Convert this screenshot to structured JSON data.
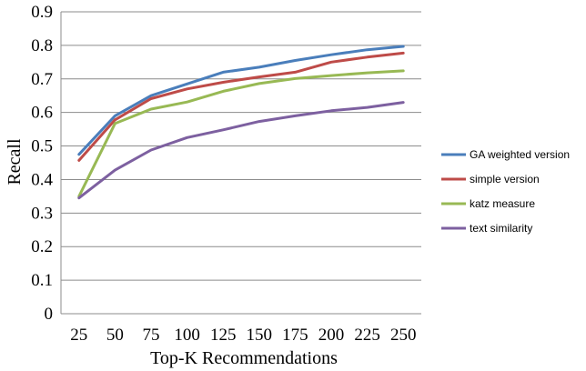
{
  "chart_data": {
    "type": "line",
    "title": "",
    "xlabel": "Top-K Recommendations",
    "ylabel": "Recall",
    "x": [
      25,
      50,
      75,
      100,
      125,
      150,
      175,
      200,
      225,
      250
    ],
    "xtick_labels": [
      "25",
      "50",
      "75",
      "100",
      "125",
      "150",
      "175",
      "200",
      "225",
      "250"
    ],
    "ylim": [
      0,
      0.9
    ],
    "ytick_labels": [
      "0",
      "0.1",
      "0.2",
      "0.3",
      "0.4",
      "0.5",
      "0.6",
      "0.7",
      "0.8",
      "0.9"
    ],
    "grid": "horizontal",
    "legend_position": "right",
    "series": [
      {
        "name": "GA weighted version",
        "color": "#4a7ebb",
        "values": [
          0.475,
          0.59,
          0.65,
          0.685,
          0.72,
          0.735,
          0.755,
          0.772,
          0.787,
          0.797
        ]
      },
      {
        "name": "simple version",
        "color": "#be4b48",
        "values": [
          0.457,
          0.578,
          0.641,
          0.67,
          0.69,
          0.706,
          0.72,
          0.75,
          0.765,
          0.777
        ]
      },
      {
        "name": "katz measure",
        "color": "#98b954",
        "values": [
          0.35,
          0.567,
          0.61,
          0.631,
          0.663,
          0.686,
          0.701,
          0.71,
          0.718,
          0.724
        ]
      },
      {
        "name": "text similarity",
        "color": "#7d60a0",
        "values": [
          0.345,
          0.428,
          0.488,
          0.525,
          0.548,
          0.573,
          0.59,
          0.605,
          0.615,
          0.63
        ]
      }
    ]
  }
}
